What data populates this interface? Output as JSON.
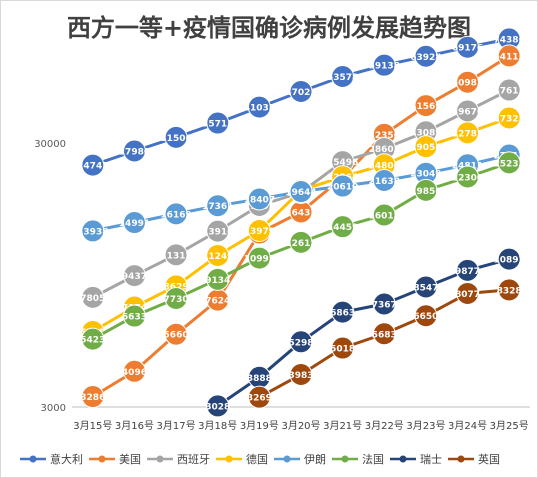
{
  "chart_data": {
    "type": "line",
    "title": "西方一等+疫情国确诊病例发展趋势图",
    "categories": [
      "3月15号",
      "3月16号",
      "3月17号",
      "3月18号",
      "3月19号",
      "3月20号",
      "3月21号",
      "3月22号",
      "3月23号",
      "3月24号",
      "3月25号"
    ],
    "y_scale": "log",
    "ylim": [
      3000,
      74386
    ],
    "yticks": [
      "3000",
      "30000"
    ],
    "grid": false,
    "legend_position": "bottom",
    "series": [
      {
        "name": "意大利",
        "color": "#4472C4",
        "values": [
          24747,
          27980,
          31506,
          35713,
          41035,
          47021,
          53578,
          59138,
          63928,
          69176,
          74386
        ]
      },
      {
        "name": "美国",
        "color": "#ED7D31",
        "values": [
          3286,
          4096,
          5660,
          7624,
          13680,
          16437,
          22247,
          32356,
          41569,
          50982,
          64115
        ]
      },
      {
        "name": "西班牙",
        "color": "#A5A5A5",
        "values": [
          7805,
          9437,
          11312,
          13910,
          17395,
          19484,
          25496,
          28603,
          33089,
          39676,
          47611
        ]
      },
      {
        "name": "德国",
        "color": "#FFC000",
        "values": [
          5795,
          7174,
          8629,
          11249,
          13979,
          19848,
          22364,
          24806,
          29056,
          32781,
          37323
        ]
      },
      {
        "name": "伊朗",
        "color": "#5B9BD5",
        "values": [
          13938,
          14991,
          16169,
          17361,
          18407,
          19644,
          20610,
          21638,
          23049,
          24811,
          27017
        ]
      },
      {
        "name": "法国",
        "color": "#70AD47",
        "values": [
          5423,
          6633,
          7730,
          9134,
          10995,
          12612,
          14459,
          16018,
          19856,
          22300,
          25233
        ]
      },
      {
        "name": "瑞士",
        "color": "#264478",
        "values": [
          null,
          null,
          null,
          3028,
          3888,
          5298,
          6863,
          7367,
          8547,
          9877,
          10897
        ]
      },
      {
        "name": "英国",
        "color": "#9E480E",
        "values": [
          null,
          null,
          null,
          null,
          3269,
          3983,
          5018,
          5683,
          6650,
          8077,
          8328
        ]
      }
    ]
  }
}
